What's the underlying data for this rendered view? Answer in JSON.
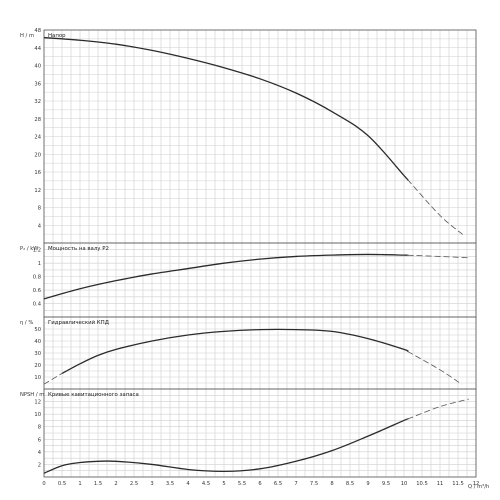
{
  "chart_data": {
    "type": "line",
    "x": {
      "label": "Q / m³/h",
      "ticks": [
        "0",
        "0.5",
        "1",
        "1.5",
        "2",
        "2.5",
        "3",
        "3.5",
        "4",
        "4.5",
        "5",
        "5.5",
        "6",
        "6.5",
        "7",
        "7.5",
        "8",
        "8.5",
        "9",
        "9.5",
        "10",
        "10.5",
        "11",
        "11.5",
        "12"
      ],
      "lim": [
        0,
        12
      ],
      "solid_end": 10.1
    },
    "panels": [
      {
        "id": "head",
        "title": "Напор",
        "ylabel": "H / m",
        "ylim": [
          0,
          48
        ],
        "yticks": [
          0,
          4,
          8,
          12,
          16,
          20,
          24,
          28,
          32,
          36,
          40,
          44,
          48
        ],
        "ytick_labels": [
          "",
          "4",
          "8",
          "12",
          "16",
          "20",
          "24",
          "28",
          "32",
          "36",
          "40",
          "44",
          "48"
        ],
        "points": [
          [
            0,
            46.3
          ],
          [
            1,
            45.7
          ],
          [
            2,
            44.8
          ],
          [
            3,
            43.4
          ],
          [
            4,
            41.6
          ],
          [
            5,
            39.5
          ],
          [
            6,
            37
          ],
          [
            7,
            33.8
          ],
          [
            8,
            29.6
          ],
          [
            9,
            24.2
          ],
          [
            10,
            15.2
          ],
          [
            11,
            6.2
          ],
          [
            11.65,
            1.8
          ]
        ]
      },
      {
        "id": "power",
        "title": "Мощность на валу P2",
        "ylabel": "P₂ / kW",
        "ylim": [
          0.2,
          1.3
        ],
        "yticks": [
          0.2,
          0.4,
          0.6,
          0.8,
          1.0,
          1.2
        ],
        "ytick_labels": [
          "",
          "0.4",
          "0.6",
          "0.8",
          "1",
          "1.2"
        ],
        "points": [
          [
            0,
            0.47
          ],
          [
            1,
            0.62
          ],
          [
            2,
            0.74
          ],
          [
            3,
            0.84
          ],
          [
            4,
            0.92
          ],
          [
            5,
            1.0
          ],
          [
            6,
            1.06
          ],
          [
            7,
            1.1
          ],
          [
            8,
            1.12
          ],
          [
            9,
            1.13
          ],
          [
            10,
            1.12
          ],
          [
            11,
            1.1
          ],
          [
            11.8,
            1.08
          ]
        ]
      },
      {
        "id": "efficiency",
        "title": "Гидравлический КПД",
        "ylabel": "η / %",
        "ylim": [
          0,
          60
        ],
        "yticks": [
          0,
          10,
          20,
          30,
          40,
          50,
          60
        ],
        "ytick_labels": [
          "",
          "10",
          "20",
          "30",
          "40",
          "50",
          ""
        ],
        "points": [
          [
            0,
            4
          ],
          [
            0.5,
            13
          ],
          [
            1,
            21
          ],
          [
            1.5,
            28
          ],
          [
            2,
            33
          ],
          [
            3,
            40
          ],
          [
            4,
            45
          ],
          [
            5,
            48
          ],
          [
            6,
            49.5
          ],
          [
            7,
            49.5
          ],
          [
            8,
            48
          ],
          [
            9,
            42
          ],
          [
            10,
            33
          ],
          [
            11,
            16
          ],
          [
            11.6,
            4
          ]
        ]
      },
      {
        "id": "npsh",
        "title": "Кривые кавитационного запаса",
        "ylabel": "NPSH / m",
        "ylim": [
          0,
          14
        ],
        "yticks": [
          0,
          2,
          4,
          6,
          8,
          10,
          12,
          14
        ],
        "ytick_labels": [
          "",
          "2",
          "4",
          "6",
          "8",
          "10",
          "12",
          ""
        ],
        "points": [
          [
            0,
            0.6
          ],
          [
            0.5,
            1.8
          ],
          [
            1,
            2.3
          ],
          [
            1.5,
            2.5
          ],
          [
            2,
            2.5
          ],
          [
            3,
            2.0
          ],
          [
            4,
            1.2
          ],
          [
            5,
            0.9
          ],
          [
            6,
            1.3
          ],
          [
            7,
            2.5
          ],
          [
            8,
            4.2
          ],
          [
            9,
            6.5
          ],
          [
            10,
            9
          ],
          [
            11,
            11.2
          ],
          [
            11.8,
            12.4
          ]
        ]
      }
    ]
  }
}
